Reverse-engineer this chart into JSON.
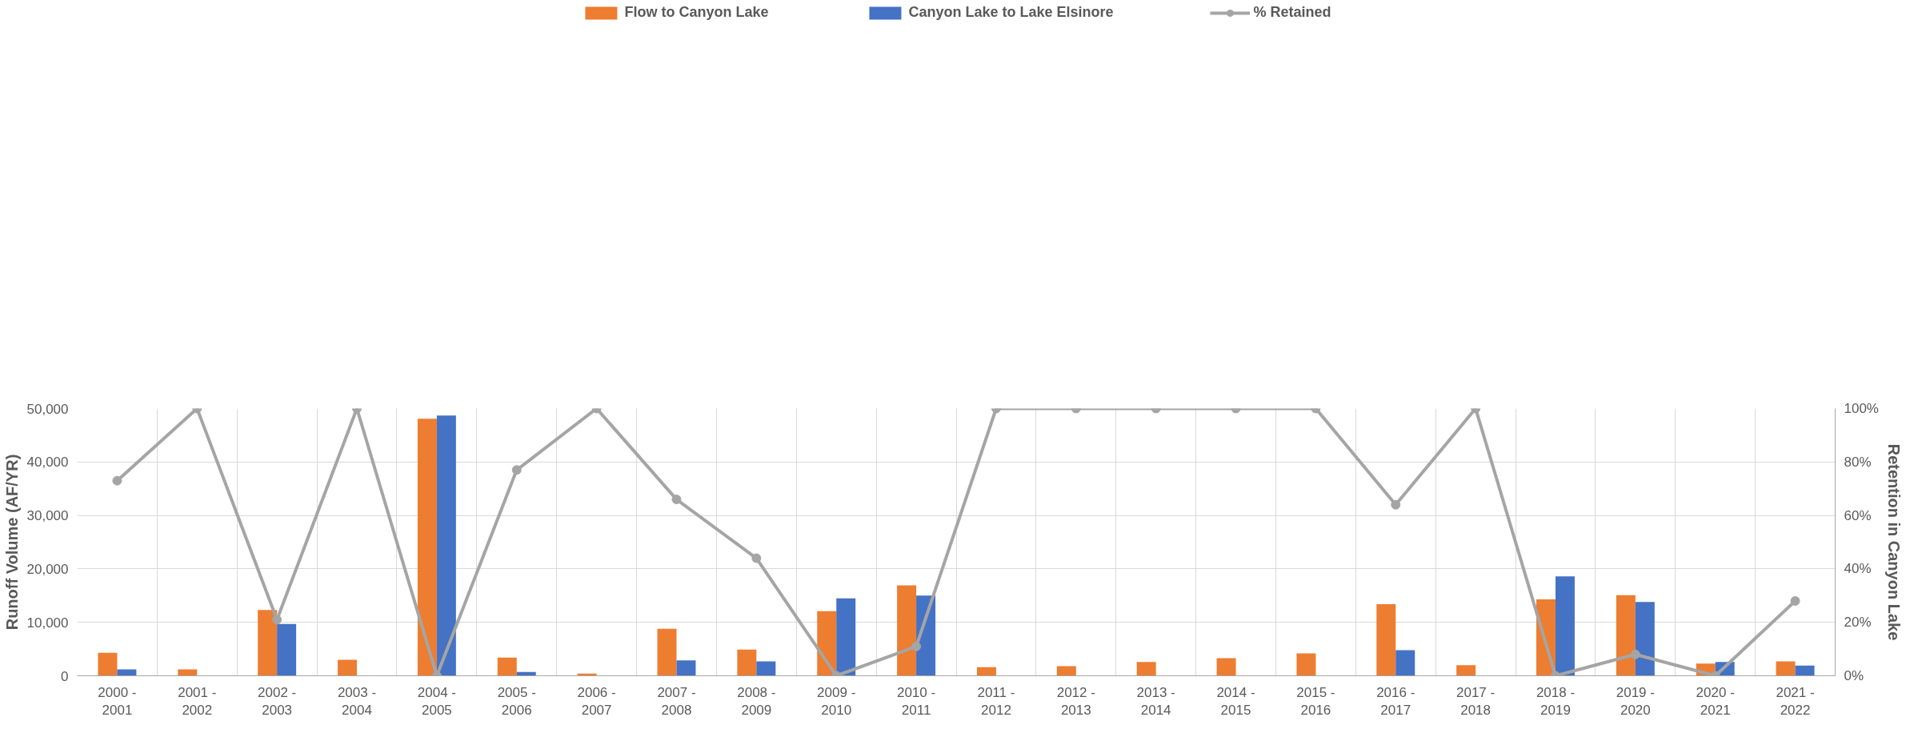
{
  "chart_data": {
    "type": "bar",
    "categories": [
      "2000 -\n2001",
      "2001 -\n2002",
      "2002 -\n2003",
      "2003 -\n2004",
      "2004 -\n2005",
      "2005 -\n2006",
      "2006 -\n2007",
      "2007 -\n2008",
      "2008 -\n2009",
      "2009 -\n2010",
      "2010 -\n2011",
      "2011 -\n2012",
      "2012 -\n2013",
      "2013 -\n2014",
      "2014 -\n2015",
      "2015 -\n2016",
      "2016 -\n2017",
      "2017 -\n2018",
      "2018 -\n2019",
      "2019 -\n2020",
      "2020 -\n2021",
      "2021 -\n2022"
    ],
    "series": [
      {
        "name": "Flow to Canyon Lake",
        "color": "#ed7d31",
        "values": [
          4300,
          1200,
          12300,
          3000,
          48100,
          3400,
          400,
          8800,
          4900,
          12100,
          16900,
          1600,
          1800,
          2600,
          3300,
          4200,
          13400,
          2000,
          14300,
          15100,
          2300,
          2700
        ]
      },
      {
        "name": "Canyon Lake to Lake Elsinore",
        "color": "#4472c4",
        "values": [
          1200,
          null,
          9700,
          null,
          48700,
          700,
          null,
          2900,
          2700,
          14500,
          15000,
          null,
          null,
          null,
          null,
          null,
          4800,
          null,
          18600,
          13800,
          2600,
          1900
        ]
      },
      {
        "name": "% Retained",
        "type": "line",
        "axis": "y2",
        "color": "#a5a5a5",
        "marker": "circle",
        "values": [
          73,
          100,
          21,
          100,
          0,
          77,
          100,
          66,
          44,
          0,
          11,
          100,
          100,
          100,
          100,
          100,
          64,
          100,
          0,
          8,
          0,
          28
        ]
      }
    ],
    "ylabel": "Runoff Volume (AF/YR)",
    "y2label": "Retention in Canyon Lake",
    "ylim": [
      0,
      50000
    ],
    "yticks": [
      {
        "value": 0,
        "label": "0"
      },
      {
        "value": 10000,
        "label": "10,000"
      },
      {
        "value": 20000,
        "label": "20,000"
      },
      {
        "value": 30000,
        "label": "30,000"
      },
      {
        "value": 40000,
        "label": "40,000"
      },
      {
        "value": 50000,
        "label": "50,000"
      }
    ],
    "y2lim": [
      0,
      100
    ],
    "y2ticks": [
      {
        "value": 0,
        "label": "0%"
      },
      {
        "value": 20,
        "label": "20%"
      },
      {
        "value": 40,
        "label": "40%"
      },
      {
        "value": 60,
        "label": "60%"
      },
      {
        "value": 80,
        "label": "80%"
      },
      {
        "value": 100,
        "label": "100%"
      }
    ],
    "grid": true,
    "legend": "top"
  }
}
